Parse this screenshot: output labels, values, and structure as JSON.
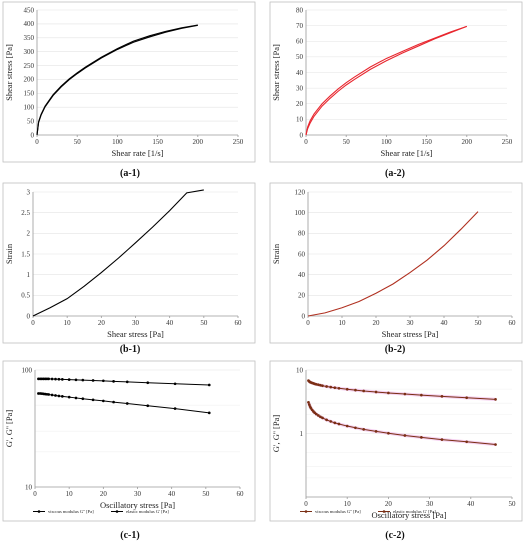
{
  "chart_data": [
    {
      "id": "a-1",
      "type": "line",
      "label": "(a-1)",
      "xlabel": "Shear rate [1/s]",
      "ylabel": "Shear stress [Pa]",
      "xlim": [
        0,
        250
      ],
      "ylim": [
        0,
        450
      ],
      "xticks": [
        0,
        50,
        100,
        150,
        200,
        250
      ],
      "yticks": [
        0,
        50,
        100,
        150,
        200,
        250,
        300,
        350,
        400,
        450
      ],
      "grid": "horizontal",
      "legend": "none",
      "color": "#000000",
      "series": [
        {
          "x": [
            0,
            2,
            5,
            10,
            20,
            30,
            40,
            50,
            60,
            80,
            100,
            120,
            140,
            160,
            180,
            200
          ],
          "y": [
            0,
            48,
            74,
            104,
            145,
            176,
            202,
            224,
            244,
            280,
            311,
            338,
            357,
            373,
            386,
            396
          ]
        },
        {
          "x": [
            0,
            2,
            5,
            10,
            20,
            30,
            40,
            50,
            60,
            80,
            100,
            120,
            140,
            160,
            180,
            200
          ],
          "y": [
            0,
            45,
            71,
            101,
            142,
            173,
            199,
            221,
            241,
            277,
            308,
            334,
            353,
            370,
            384,
            395
          ]
        }
      ]
    },
    {
      "id": "a-2",
      "type": "line",
      "label": "(a-2)",
      "xlabel": "Shear rate [1/s]",
      "ylabel": "Shear stress [Pa]",
      "xlim": [
        0,
        250
      ],
      "ylim": [
        0,
        80
      ],
      "xticks": [
        0,
        50,
        100,
        150,
        200,
        250
      ],
      "yticks": [
        0,
        10,
        20,
        30,
        40,
        50,
        60,
        70,
        80
      ],
      "grid": "horizontal",
      "legend": "none",
      "color": "#e8262e",
      "series": [
        {
          "x": [
            0,
            2,
            5,
            10,
            20,
            30,
            40,
            50,
            60,
            80,
            100,
            120,
            140,
            160,
            180,
            200
          ],
          "y": [
            0,
            5,
            9,
            13.5,
            20,
            25,
            29.5,
            33.5,
            37,
            43.5,
            49,
            53.5,
            58,
            62,
            66,
            69.5
          ]
        },
        {
          "x": [
            0,
            2,
            5,
            10,
            20,
            30,
            40,
            50,
            60,
            80,
            100,
            120,
            140,
            160,
            180,
            200
          ],
          "y": [
            0,
            4,
            7.5,
            12,
            18.5,
            23.5,
            28,
            32,
            35.5,
            42,
            47.5,
            52.5,
            57,
            61.5,
            65.5,
            69.5
          ]
        }
      ]
    },
    {
      "id": "b-1",
      "type": "line",
      "label": "(b-1)",
      "xlabel": "Shear stress [Pa]",
      "ylabel": "Strain",
      "xlim": [
        0,
        60
      ],
      "ylim": [
        0,
        3
      ],
      "xticks": [
        0,
        10,
        20,
        30,
        40,
        50,
        60
      ],
      "yticks": [
        0,
        0.5,
        1,
        1.5,
        2,
        2.5,
        3
      ],
      "grid": "horizontal",
      "legend": "none",
      "color": "#000000",
      "series": [
        {
          "x": [
            0,
            5,
            10,
            15,
            20,
            25,
            30,
            35,
            40,
            45,
            50
          ],
          "y": [
            0,
            0.2,
            0.42,
            0.72,
            1.05,
            1.4,
            1.77,
            2.15,
            2.55,
            2.98,
            3.05
          ]
        }
      ]
    },
    {
      "id": "b-2",
      "type": "line",
      "label": "(b-2)",
      "xlabel": "Shear stress [Pa]",
      "ylabel": "Strain",
      "xlim": [
        0,
        60
      ],
      "ylim": [
        0,
        120
      ],
      "xticks": [
        0,
        10,
        20,
        30,
        40,
        50,
        60
      ],
      "yticks": [
        0,
        20,
        40,
        60,
        80,
        100,
        120
      ],
      "grid": "horizontal",
      "legend": "none",
      "color": "#b03020",
      "series": [
        {
          "x": [
            0,
            5,
            10,
            15,
            20,
            25,
            30,
            35,
            40,
            45,
            50
          ],
          "y": [
            0,
            3,
            8,
            14,
            22,
            31,
            42,
            54,
            68,
            84,
            101
          ]
        }
      ]
    },
    {
      "id": "c-1",
      "type": "line",
      "label": "(c-1)",
      "yscale": "log",
      "xlabel": "Oscillatory stress [Pa]",
      "ylabel": "G', G'' [Pa]",
      "xlim": [
        0,
        60
      ],
      "ylim": [
        10,
        100
      ],
      "xticks": [
        0,
        10,
        20,
        30,
        40,
        50,
        60
      ],
      "yticks": [
        10,
        100
      ],
      "grid": "horizontal",
      "legend": "bottom",
      "color": "#000000",
      "markers": true,
      "series": [
        {
          "name": "viscous modulus G'' [Pa]",
          "x": [
            1,
            1.5,
            2,
            2.5,
            3,
            3.5,
            4,
            5,
            6,
            7,
            8,
            10,
            12,
            14,
            17,
            20,
            23,
            27,
            33,
            41,
            51
          ],
          "y": [
            84,
            84,
            84,
            84,
            84,
            84,
            84,
            83.8,
            83.6,
            83.4,
            83.2,
            82.8,
            82.4,
            82,
            81.4,
            80.8,
            80,
            79.2,
            77.8,
            76.2,
            74.5
          ]
        },
        {
          "name": "elastic modulus G' [Pa]",
          "x": [
            1,
            1.5,
            2,
            2.5,
            3,
            3.5,
            4,
            5,
            6,
            7,
            8,
            10,
            12,
            14,
            17,
            20,
            23,
            27,
            33,
            41,
            51
          ],
          "y": [
            63,
            63,
            62.8,
            62.5,
            62.2,
            62,
            61.8,
            61.2,
            60.6,
            60,
            59.5,
            58.6,
            57.7,
            56.8,
            55.6,
            54.4,
            53.2,
            51.7,
            49.5,
            46.8,
            43
          ]
        }
      ]
    },
    {
      "id": "c-2",
      "type": "line",
      "label": "(c-2)",
      "yscale": "log",
      "xlabel": "Oscillatory stress [Pa]",
      "ylabel": "G', G'' [Pa]",
      "xlim": [
        0,
        50
      ],
      "ylim": [
        0.1,
        10
      ],
      "xticks": [
        0,
        10,
        20,
        30,
        40,
        50
      ],
      "yticks": [
        1,
        10
      ],
      "grid": "horizontal",
      "legend": "bottom",
      "color": "#7a2e14",
      "markers": true,
      "series": [
        {
          "name": "viscous modulus G'' [Pa]",
          "x": [
            0.6,
            0.8,
            1,
            1.2,
            1.5,
            1.8,
            2.1,
            2.5,
            3,
            3.5,
            4,
            5,
            6,
            7,
            8,
            10,
            12,
            14,
            17,
            20,
            24,
            28,
            33,
            39,
            46
          ],
          "y": [
            6.8,
            6.6,
            6.45,
            6.35,
            6.25,
            6.15,
            6.05,
            5.95,
            5.85,
            5.75,
            5.65,
            5.5,
            5.38,
            5.26,
            5.15,
            4.98,
            4.82,
            4.68,
            4.5,
            4.35,
            4.18,
            4.02,
            3.85,
            3.66,
            3.45
          ]
        },
        {
          "name": "elastic modulus G' [Pa]",
          "x": [
            0.6,
            0.8,
            1,
            1.2,
            1.5,
            1.8,
            2.1,
            2.5,
            3,
            3.5,
            4,
            5,
            6,
            7,
            8,
            10,
            12,
            14,
            17,
            20,
            24,
            28,
            33,
            39,
            46
          ],
          "y": [
            3.1,
            2.85,
            2.65,
            2.5,
            2.35,
            2.22,
            2.12,
            2.02,
            1.92,
            1.83,
            1.76,
            1.64,
            1.55,
            1.47,
            1.41,
            1.31,
            1.23,
            1.16,
            1.08,
            1.01,
            0.93,
            0.87,
            0.8,
            0.74,
            0.67
          ]
        }
      ]
    }
  ]
}
